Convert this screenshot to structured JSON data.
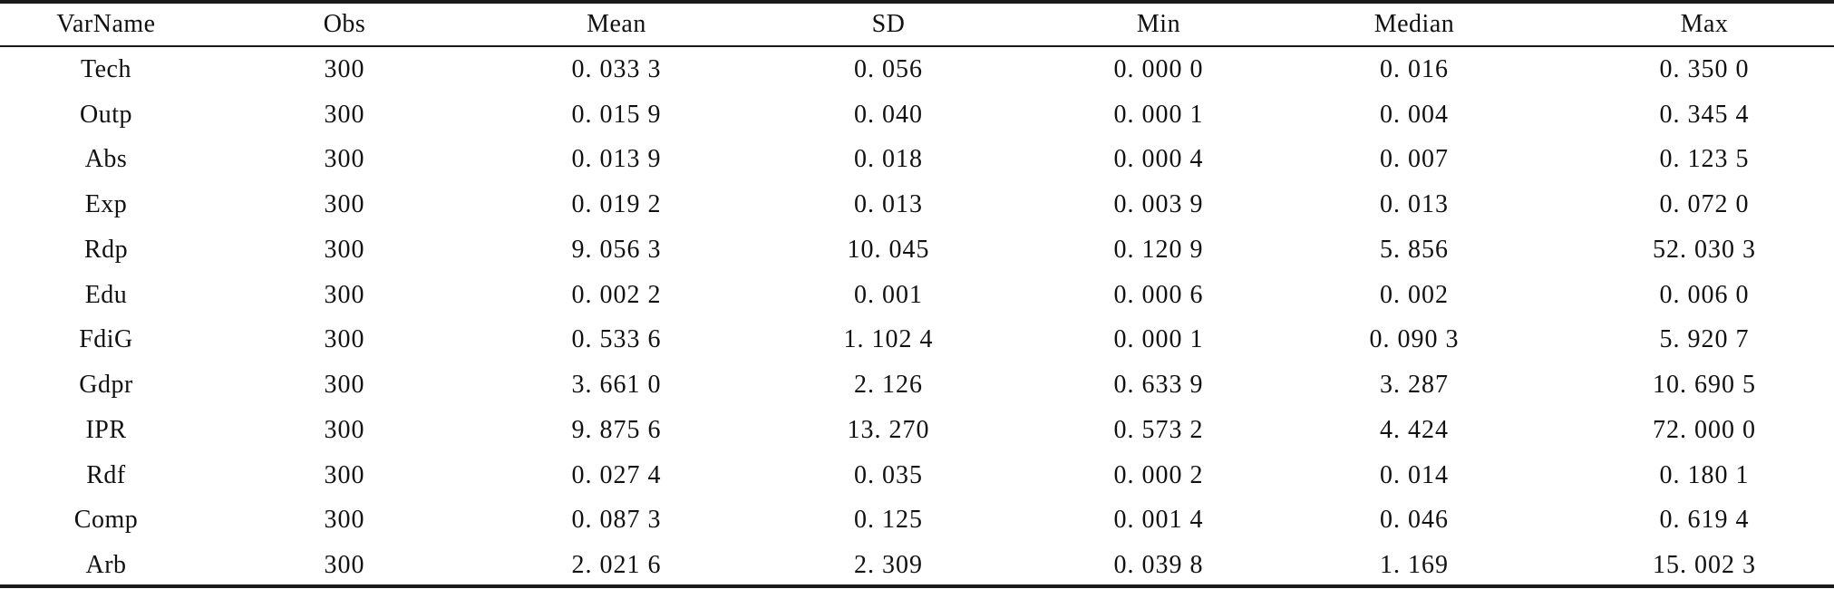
{
  "table": {
    "headers": [
      "VarName",
      "Obs",
      "Mean",
      "SD",
      "Min",
      "Median",
      "Max"
    ],
    "rows": [
      [
        "Tech",
        "300",
        "0. 033 3",
        "0. 056",
        "0. 000 0",
        "0. 016",
        "0. 350 0"
      ],
      [
        "Outp",
        "300",
        "0. 015 9",
        "0. 040",
        "0. 000 1",
        "0. 004",
        "0. 345 4"
      ],
      [
        "Abs",
        "300",
        "0. 013 9",
        "0. 018",
        "0. 000 4",
        "0. 007",
        "0. 123 5"
      ],
      [
        "Exp",
        "300",
        "0. 019 2",
        "0. 013",
        "0. 003 9",
        "0. 013",
        "0. 072 0"
      ],
      [
        "Rdp",
        "300",
        "9. 056 3",
        "10. 045",
        "0. 120 9",
        "5. 856",
        "52. 030 3"
      ],
      [
        "Edu",
        "300",
        "0. 002 2",
        "0. 001",
        "0. 000 6",
        "0. 002",
        "0. 006 0"
      ],
      [
        "FdiG",
        "300",
        "0. 533 6",
        "1. 102 4",
        "0. 000 1",
        "0. 090 3",
        "5. 920 7"
      ],
      [
        "Gdpr",
        "300",
        "3. 661 0",
        "2. 126",
        "0. 633 9",
        "3. 287",
        "10. 690 5"
      ],
      [
        "IPR",
        "300",
        "9. 875 6",
        "13. 270",
        "0. 573 2",
        "4. 424",
        "72. 000 0"
      ],
      [
        "Rdf",
        "300",
        "0. 027 4",
        "0. 035",
        "0. 000 2",
        "0. 014",
        "0. 180 1"
      ],
      [
        "Comp",
        "300",
        "0. 087 3",
        "0. 125",
        "0. 001 4",
        "0. 046",
        "0. 619 4"
      ],
      [
        "Arb",
        "300",
        "2. 021 6",
        "2. 309",
        "0. 039 8",
        "1. 169",
        "15. 002 3"
      ]
    ]
  }
}
